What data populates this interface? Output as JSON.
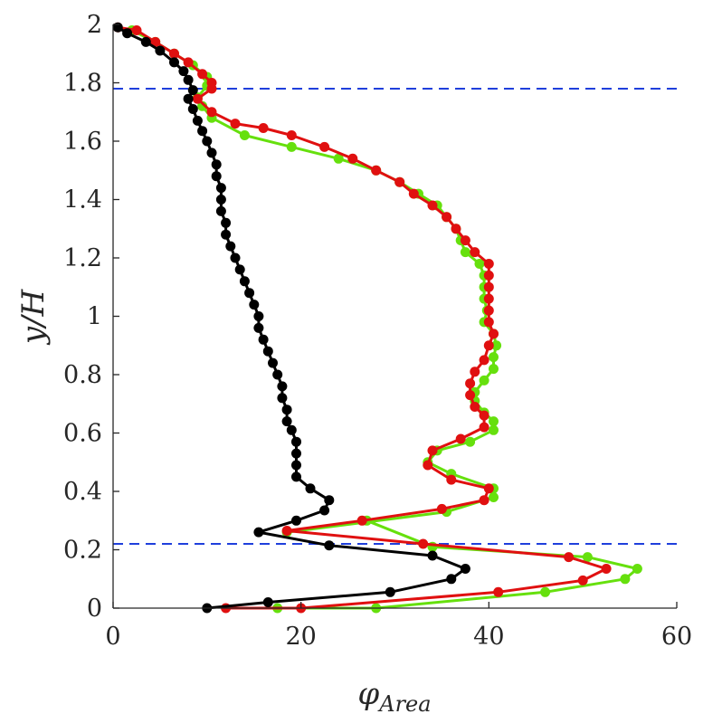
{
  "chart_data": {
    "type": "line",
    "xlabel": "φ",
    "xlabel_sub": "Area",
    "ylabel_main": "y/H",
    "xlim": [
      0,
      60
    ],
    "ylim": [
      0,
      2
    ],
    "xticks": [
      0,
      20,
      40,
      60
    ],
    "yticks": [
      0,
      0.2,
      0.4,
      0.6,
      0.8,
      1,
      1.2,
      1.4,
      1.6,
      1.8,
      2
    ],
    "grid": false,
    "reference_lines": [
      {
        "y": 0.22,
        "color": "#1f3fdc",
        "style": "dashed"
      },
      {
        "y": 1.78,
        "color": "#1f3fdc",
        "style": "dashed"
      }
    ],
    "series": [
      {
        "color": "#66e00d",
        "points": [
          [
            17.5,
            0.0
          ],
          [
            28,
            0.0
          ],
          [
            46,
            0.055
          ],
          [
            54.5,
            0.1
          ],
          [
            55.8,
            0.135
          ],
          [
            50.5,
            0.175
          ],
          [
            34,
            0.21
          ],
          [
            27,
            0.3
          ],
          [
            18.5,
            0.26
          ],
          [
            35.5,
            0.33
          ],
          [
            40.5,
            0.38
          ],
          [
            40.5,
            0.41
          ],
          [
            36,
            0.46
          ],
          [
            33.5,
            0.5
          ],
          [
            34.5,
            0.54
          ],
          [
            38,
            0.57
          ],
          [
            40.5,
            0.61
          ],
          [
            40.5,
            0.64
          ],
          [
            39.5,
            0.67
          ],
          [
            38.5,
            0.71
          ],
          [
            38.5,
            0.74
          ],
          [
            39.5,
            0.78
          ],
          [
            40.5,
            0.82
          ],
          [
            40.5,
            0.86
          ],
          [
            40.8,
            0.9
          ],
          [
            40.5,
            0.94
          ],
          [
            39.5,
            0.98
          ],
          [
            39.8,
            1.02
          ],
          [
            39.5,
            1.06
          ],
          [
            39.5,
            1.1
          ],
          [
            39.5,
            1.14
          ],
          [
            39,
            1.18
          ],
          [
            37.5,
            1.22
          ],
          [
            37,
            1.26
          ],
          [
            36.5,
            1.3
          ],
          [
            35.5,
            1.34
          ],
          [
            34.5,
            1.38
          ],
          [
            32.5,
            1.42
          ],
          [
            30.5,
            1.46
          ],
          [
            28,
            1.5
          ],
          [
            24,
            1.54
          ],
          [
            19,
            1.58
          ],
          [
            14,
            1.62
          ],
          [
            10.5,
            1.68
          ],
          [
            9.5,
            1.72
          ],
          [
            9,
            1.75
          ],
          [
            10,
            1.79
          ],
          [
            10,
            1.82
          ],
          [
            8.5,
            1.86
          ],
          [
            6.5,
            1.9
          ],
          [
            4.5,
            1.94
          ],
          [
            2,
            1.98
          ]
        ]
      },
      {
        "color": "#e01010",
        "points": [
          [
            12,
            0.0
          ],
          [
            20,
            0.0
          ],
          [
            41,
            0.055
          ],
          [
            50,
            0.095
          ],
          [
            52.5,
            0.135
          ],
          [
            48.5,
            0.175
          ],
          [
            33,
            0.22
          ],
          [
            18.5,
            0.265
          ],
          [
            26.5,
            0.3
          ],
          [
            35,
            0.34
          ],
          [
            39.5,
            0.37
          ],
          [
            40,
            0.41
          ],
          [
            36,
            0.44
          ],
          [
            33.5,
            0.49
          ],
          [
            34,
            0.54
          ],
          [
            37,
            0.58
          ],
          [
            39.5,
            0.62
          ],
          [
            39.5,
            0.66
          ],
          [
            38.5,
            0.69
          ],
          [
            38,
            0.73
          ],
          [
            38,
            0.77
          ],
          [
            38.5,
            0.81
          ],
          [
            39.5,
            0.85
          ],
          [
            40,
            0.9
          ],
          [
            40.5,
            0.94
          ],
          [
            40,
            0.98
          ],
          [
            40,
            1.02
          ],
          [
            40,
            1.06
          ],
          [
            40,
            1.1
          ],
          [
            40,
            1.14
          ],
          [
            40,
            1.18
          ],
          [
            38.5,
            1.22
          ],
          [
            37.5,
            1.26
          ],
          [
            36.5,
            1.3
          ],
          [
            35.5,
            1.34
          ],
          [
            34,
            1.38
          ],
          [
            32,
            1.42
          ],
          [
            30.5,
            1.46
          ],
          [
            28,
            1.5
          ],
          [
            25.5,
            1.54
          ],
          [
            22.5,
            1.58
          ],
          [
            19,
            1.62
          ],
          [
            16,
            1.645
          ],
          [
            13,
            1.66
          ],
          [
            10.5,
            1.7
          ],
          [
            9,
            1.745
          ],
          [
            10.5,
            1.78
          ],
          [
            10.5,
            1.8
          ],
          [
            9.5,
            1.83
          ],
          [
            8,
            1.87
          ],
          [
            6.5,
            1.9
          ],
          [
            4.5,
            1.94
          ],
          [
            2.5,
            1.98
          ],
          [
            0.5,
            1.99
          ]
        ]
      },
      {
        "color": "#000000",
        "points": [
          [
            10,
            0.0
          ],
          [
            16.5,
            0.02
          ],
          [
            29.5,
            0.055
          ],
          [
            36,
            0.1
          ],
          [
            37.5,
            0.135
          ],
          [
            34,
            0.18
          ],
          [
            23,
            0.215
          ],
          [
            15.5,
            0.26
          ],
          [
            19.5,
            0.3
          ],
          [
            22.5,
            0.335
          ],
          [
            23,
            0.37
          ],
          [
            21,
            0.41
          ],
          [
            19.5,
            0.45
          ],
          [
            19.5,
            0.49
          ],
          [
            19.5,
            0.53
          ],
          [
            19.5,
            0.57
          ],
          [
            19,
            0.61
          ],
          [
            18.5,
            0.64
          ],
          [
            18.5,
            0.68
          ],
          [
            18,
            0.72
          ],
          [
            18,
            0.76
          ],
          [
            17.5,
            0.8
          ],
          [
            17,
            0.84
          ],
          [
            16.5,
            0.88
          ],
          [
            16,
            0.92
          ],
          [
            15.5,
            0.96
          ],
          [
            15.5,
            1.0
          ],
          [
            15,
            1.04
          ],
          [
            14.5,
            1.08
          ],
          [
            14,
            1.12
          ],
          [
            13.5,
            1.16
          ],
          [
            13,
            1.2
          ],
          [
            12.5,
            1.24
          ],
          [
            12,
            1.28
          ],
          [
            12,
            1.32
          ],
          [
            11.5,
            1.36
          ],
          [
            11.5,
            1.4
          ],
          [
            11.5,
            1.44
          ],
          [
            11,
            1.48
          ],
          [
            11,
            1.52
          ],
          [
            10.5,
            1.56
          ],
          [
            10,
            1.6
          ],
          [
            9.5,
            1.635
          ],
          [
            9,
            1.67
          ],
          [
            8.5,
            1.71
          ],
          [
            8,
            1.745
          ],
          [
            8.5,
            1.775
          ],
          [
            8,
            1.81
          ],
          [
            7.5,
            1.84
          ],
          [
            6.5,
            1.87
          ],
          [
            5,
            1.91
          ],
          [
            3.5,
            1.94
          ],
          [
            1.5,
            1.97
          ],
          [
            0.5,
            1.99
          ]
        ]
      }
    ]
  }
}
